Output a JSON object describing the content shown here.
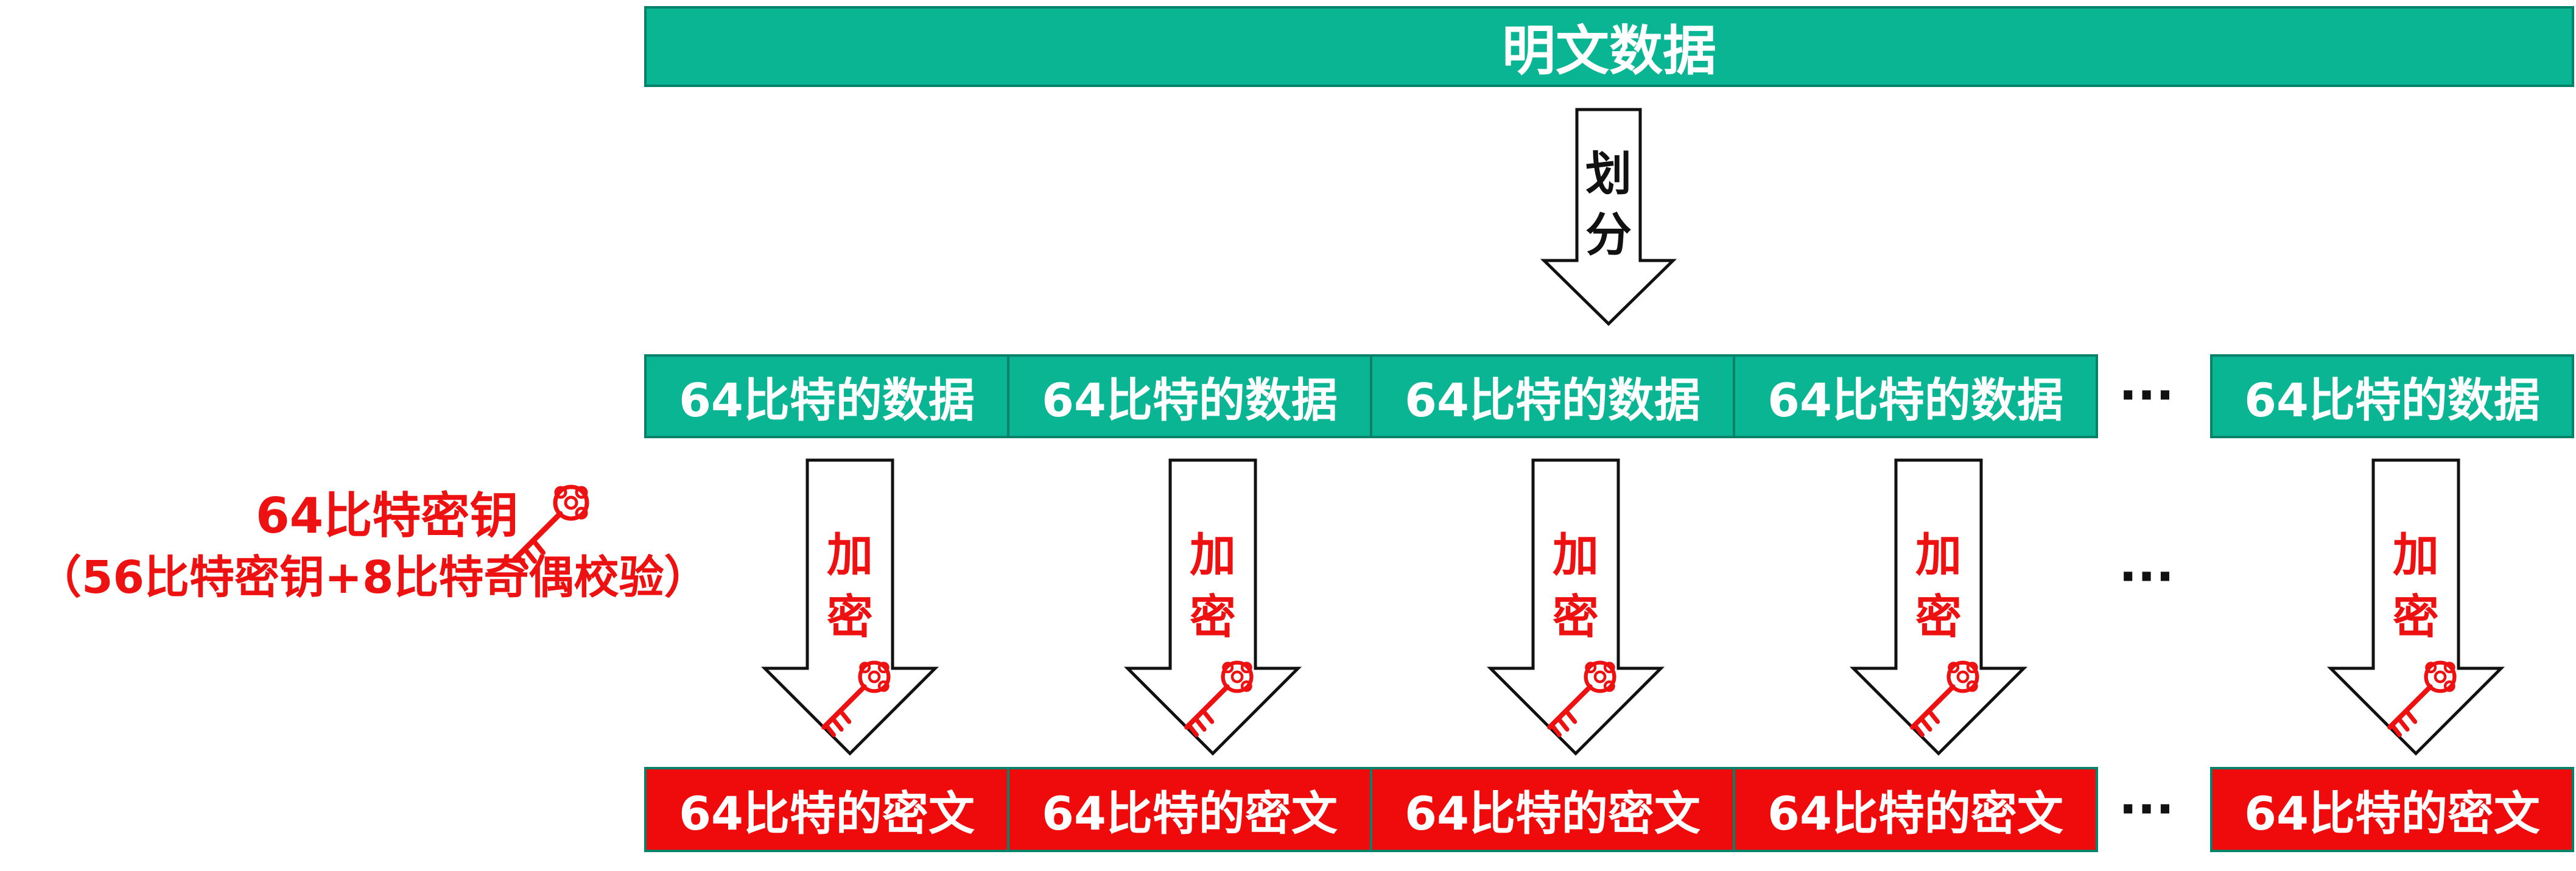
{
  "plaintext_label": "明文数据",
  "split_label": "划分",
  "block_label": "64比特的数据",
  "encrypt_label": "加密",
  "cipher_label": "64比特的密文",
  "ellipsis": "···",
  "key": {
    "line1": "64比特密钥",
    "line2": "（56比特密钥+8比特奇偶校验）"
  },
  "colors": {
    "green": "#0ab594",
    "red": "#ef0b0b",
    "border": "#07826a"
  }
}
